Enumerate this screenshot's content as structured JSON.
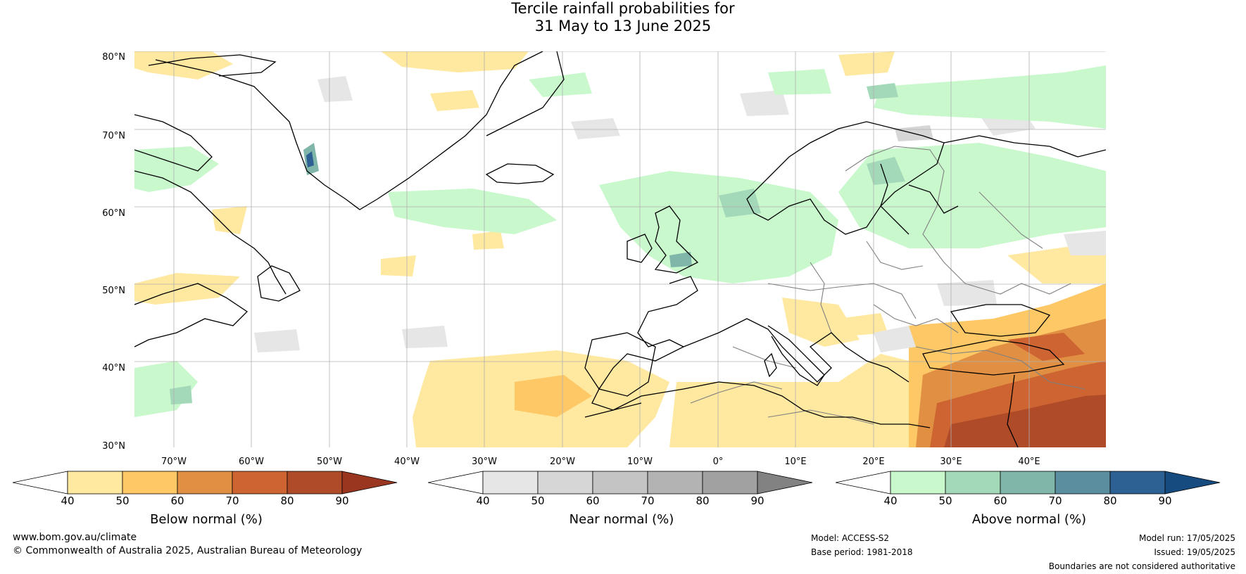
{
  "title": {
    "line1": "Tercile rainfall probabilities for",
    "line2": "31 May to 13 June 2025"
  },
  "map": {
    "lat_labels": [
      "80°N",
      "70°N",
      "60°N",
      "50°N",
      "40°N",
      "30°N"
    ],
    "lon_labels": [
      "70°W",
      "60°W",
      "50°W",
      "40°W",
      "30°W",
      "20°W",
      "10°W",
      "0°",
      "10°E",
      "20°E",
      "30°E",
      "40°E"
    ],
    "colors": {
      "land_outline": "#000000",
      "borders": "#808080",
      "graticule": "#b0b0b0"
    }
  },
  "colorbars": [
    {
      "title": "Below normal (%)",
      "ticks": [
        "40",
        "50",
        "60",
        "70",
        "80",
        "90"
      ],
      "colors": [
        "#ffffff",
        "#ffe8a0",
        "#fdc865",
        "#e08f43",
        "#cd6431",
        "#b04b2a",
        "#9a3520"
      ]
    },
    {
      "title": "Near normal (%)",
      "ticks": [
        "40",
        "50",
        "60",
        "70",
        "80",
        "90"
      ],
      "colors": [
        "#ffffff",
        "#e6e6e6",
        "#d6d6d6",
        "#c4c4c4",
        "#b3b3b3",
        "#a1a1a1",
        "#828282"
      ]
    },
    {
      "title": "Above normal (%)",
      "ticks": [
        "40",
        "50",
        "60",
        "70",
        "80",
        "90"
      ],
      "colors": [
        "#ffffff",
        "#c9f8cd",
        "#a3d8b8",
        "#80b6aa",
        "#5b8f9f",
        "#2e6193",
        "#164b80"
      ]
    }
  ],
  "footer": {
    "website": "www.bom.gov.au/climate",
    "copyright": "© Commonwealth of Australia 2025, Australian Bureau of Meteorology",
    "model": "Model: ACCESS-S2",
    "base_period": "Base period: 1981-2018",
    "model_run": "Model run: 17/05/2025",
    "issued": "Issued: 19/05/2025",
    "disclaimer": "Boundaries are not considered authoritative"
  }
}
